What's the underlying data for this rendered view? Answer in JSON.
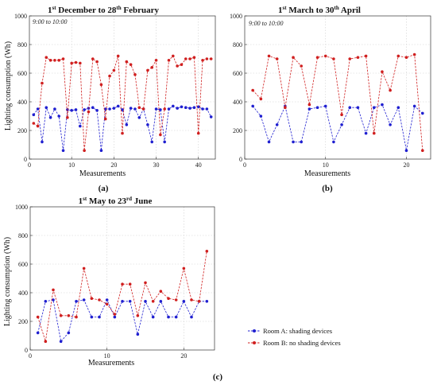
{
  "chart_data": [
    {
      "type": "line",
      "panel": "(a)",
      "title": {
        "p1": "1",
        "s1": "st",
        "p2": " December to 28",
        "s2": "th",
        "p3": " February"
      },
      "annotation": "9:00 to 10:00",
      "xlabel": "Measurements",
      "ylabel": "Lighting consumption (Wh)",
      "xlim": [
        0,
        44
      ],
      "ylim": [
        0,
        1000
      ],
      "xticks": [
        0,
        10,
        20,
        30,
        40
      ],
      "yticks": [
        0,
        200,
        400,
        600,
        800,
        1000
      ],
      "grid": true,
      "x": [
        1,
        2,
        3,
        4,
        5,
        6,
        7,
        8,
        9,
        10,
        11,
        12,
        13,
        14,
        15,
        16,
        17,
        18,
        19,
        20,
        21,
        22,
        23,
        24,
        25,
        26,
        27,
        28,
        29,
        30,
        31,
        32,
        33,
        34,
        35,
        36,
        37,
        38,
        39,
        40,
        41,
        42,
        43
      ],
      "series": [
        {
          "name": "Room A: shading devices",
          "color": "#1f1fd0",
          "values": [
            310,
            350,
            120,
            360,
            290,
            350,
            300,
            60,
            345,
            340,
            345,
            230,
            345,
            355,
            360,
            340,
            60,
            350,
            350,
            355,
            370,
            345,
            240,
            355,
            350,
            290,
            350,
            240,
            120,
            350,
            345,
            120,
            350,
            370,
            355,
            365,
            360,
            355,
            360,
            365,
            350,
            350,
            295
          ]
        },
        {
          "name": "Room B: no shading devices",
          "color": "#d01f1f",
          "values": [
            250,
            230,
            530,
            710,
            690,
            690,
            690,
            700,
            290,
            670,
            675,
            670,
            60,
            330,
            700,
            680,
            520,
            280,
            580,
            620,
            720,
            180,
            680,
            660,
            590,
            360,
            350,
            620,
            640,
            690,
            170,
            350,
            690,
            720,
            650,
            660,
            700,
            700,
            710,
            180,
            690,
            700,
            700
          ]
        }
      ]
    },
    {
      "type": "line",
      "panel": "(b)",
      "title": {
        "p1": "1",
        "s1": "st",
        "p2": " March to 30",
        "s2": "th",
        "p3": " April"
      },
      "annotation": "9:00 to 10:00",
      "xlabel": "Measurements",
      "ylabel": "",
      "xlim": [
        0,
        23
      ],
      "ylim": [
        0,
        1000
      ],
      "xticks": [
        0,
        10,
        20
      ],
      "yticks": [
        0,
        200,
        400,
        600,
        800,
        1000
      ],
      "grid": true,
      "x": [
        1,
        2,
        3,
        4,
        5,
        6,
        7,
        8,
        9,
        10,
        11,
        12,
        13,
        14,
        15,
        16,
        17,
        18,
        19,
        20,
        21,
        22
      ],
      "series": [
        {
          "name": "Room A: shading devices",
          "color": "#1f1fd0",
          "values": [
            370,
            300,
            120,
            240,
            370,
            120,
            120,
            350,
            360,
            370,
            120,
            240,
            360,
            360,
            180,
            360,
            380,
            240,
            360,
            60,
            370,
            320
          ]
        },
        {
          "name": "Room B: no shading devices",
          "color": "#d01f1f",
          "values": [
            480,
            420,
            720,
            700,
            360,
            710,
            650,
            380,
            710,
            720,
            700,
            310,
            700,
            710,
            720,
            180,
            610,
            480,
            720,
            710,
            730,
            60
          ]
        }
      ]
    },
    {
      "type": "line",
      "panel": "(c)",
      "title": {
        "p1": "1",
        "s1": "st",
        "p2": " May to 23",
        "s2": "rd",
        "p3": " June"
      },
      "annotation": "",
      "xlabel": "Measurements",
      "ylabel": "Lighting consumption (Wh)",
      "xlim": [
        0,
        24
      ],
      "ylim": [
        0,
        1000
      ],
      "xticks": [
        0,
        10,
        20
      ],
      "yticks": [
        0,
        200,
        400,
        600,
        800,
        1000
      ],
      "grid": true,
      "x": [
        1,
        2,
        3,
        4,
        5,
        6,
        7,
        8,
        9,
        10,
        11,
        12,
        13,
        14,
        15,
        16,
        17,
        18,
        19,
        20,
        21,
        22,
        23
      ],
      "series": [
        {
          "name": "Room A: shading devices",
          "color": "#1f1fd0",
          "values": [
            120,
            340,
            350,
            60,
            120,
            340,
            350,
            230,
            230,
            350,
            230,
            340,
            340,
            110,
            340,
            230,
            340,
            230,
            230,
            340,
            230,
            340,
            340
          ]
        },
        {
          "name": "Room B: no shading devices",
          "color": "#d01f1f",
          "values": [
            230,
            60,
            420,
            240,
            240,
            230,
            570,
            360,
            350,
            320,
            250,
            460,
            460,
            240,
            470,
            340,
            410,
            360,
            350,
            570,
            350,
            340,
            690
          ]
        }
      ]
    }
  ],
  "legend": {
    "placement": "bottom-right",
    "items": [
      "Room A: shading devices",
      "Room B: no shading devices"
    ]
  }
}
